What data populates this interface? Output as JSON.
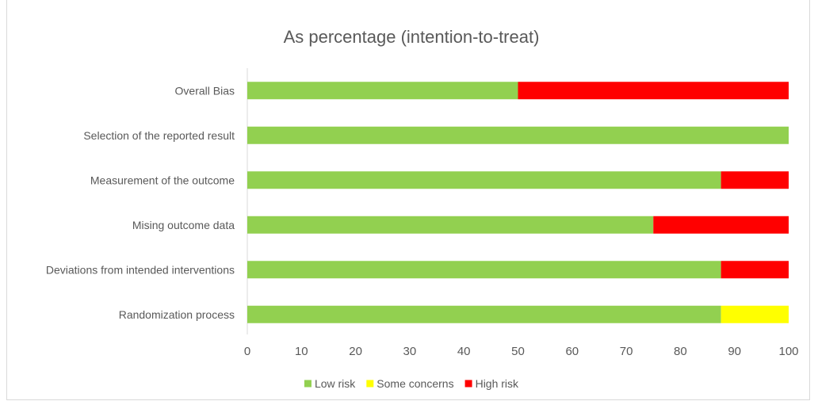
{
  "chart_data": {
    "type": "bar",
    "orientation": "horizontal",
    "stacked": true,
    "title": "As percentage (intention-to-treat)",
    "categories": [
      "Overall Bias",
      "Selection of the reported result",
      "Measurement of the outcome",
      "Mising outcome data",
      "Deviations from intended interventions",
      "Randomization process"
    ],
    "series": [
      {
        "name": "Low risk",
        "color": "#92d050",
        "values": [
          50,
          100,
          87.5,
          75,
          87.5,
          87.5
        ]
      },
      {
        "name": "Some concerns",
        "color": "#ffff00",
        "values": [
          0,
          0,
          0,
          0,
          0,
          12.5
        ]
      },
      {
        "name": "High risk",
        "color": "#ff0000",
        "values": [
          50,
          0,
          12.5,
          25,
          12.5,
          0
        ]
      }
    ],
    "xlim": [
      0,
      100
    ],
    "xticks": [
      0,
      10,
      20,
      30,
      40,
      50,
      60,
      70,
      80,
      90,
      100
    ],
    "grid": false,
    "legend_position": "bottom"
  }
}
